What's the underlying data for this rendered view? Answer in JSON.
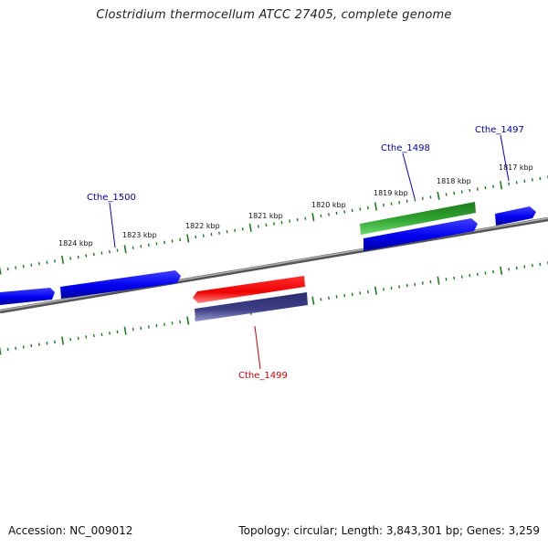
{
  "title": "Clostridium thermocellum ATCC 27405, complete genome",
  "footer": {
    "accession": "Accession: NC_009012",
    "summary": "Topology: circular; Length: 3,843,301 bp; Genes: 3,259"
  },
  "colors": {
    "backbone": "#7f7f7f",
    "ticks": "#1e7a1e",
    "gene_blue": "#0000ee",
    "gene_green": "#2ea12e",
    "gene_red": "#ee0000",
    "gene_purple": "#3f3f88",
    "label_blue": "#00009a",
    "label_red": "#c80000"
  },
  "scale_labels": [
    "1817 kbp",
    "1818 kbp",
    "1819 kbp",
    "1820 kbp",
    "1821 kbp",
    "1822 kbp",
    "1823 kbp",
    "1824 kbp"
  ],
  "gene_labels": [
    "Cthe_1497",
    "Cthe_1498",
    "Cthe_1500",
    "Cthe_1499"
  ]
}
